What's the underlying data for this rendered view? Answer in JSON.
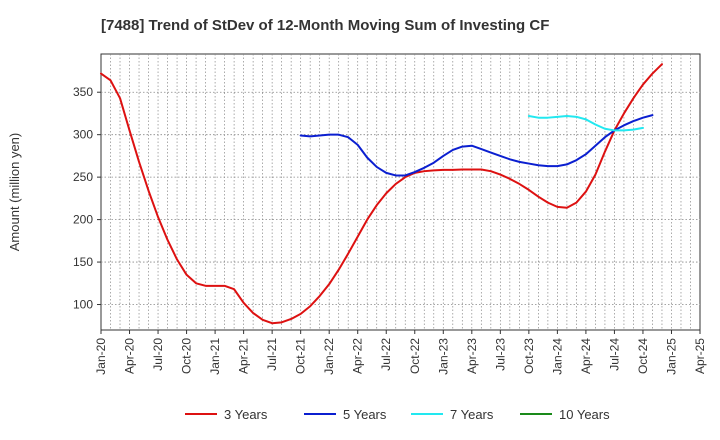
{
  "chart_data": {
    "type": "line",
    "title": "[7488]  Trend of StDev of 12-Month Moving Sum of Investing CF",
    "ylabel": "Amount (million yen)",
    "xlabel": "",
    "x_start": "2020-01",
    "x_end": "2025-04",
    "ylim": [
      70,
      395
    ],
    "y_ticks": [
      100,
      150,
      200,
      250,
      300,
      350
    ],
    "x_tick_labels": [
      "Jan-20",
      "Apr-20",
      "Jul-20",
      "Oct-20",
      "Jan-21",
      "Apr-21",
      "Jul-21",
      "Oct-21",
      "Jan-22",
      "Apr-22",
      "Jul-22",
      "Oct-22",
      "Jan-23",
      "Apr-23",
      "Jul-23",
      "Oct-23",
      "Jan-24",
      "Apr-24",
      "Jul-24",
      "Oct-24",
      "Jan-25",
      "Apr-25"
    ],
    "grid": true,
    "legend_position": "bottom",
    "series": [
      {
        "name": "3 Years",
        "color": "#dd1111",
        "start": "2020-01",
        "values": [
          372,
          364,
          343,
          305,
          268,
          234,
          203,
          176,
          153,
          135,
          125,
          122,
          122,
          122,
          118,
          102,
          90,
          82,
          78,
          79,
          83,
          89,
          98,
          110,
          124,
          141,
          160,
          180,
          200,
          217,
          231,
          242,
          250,
          255,
          257,
          258,
          258.5,
          258.5,
          259,
          259,
          259,
          257,
          253,
          248,
          242,
          235,
          227,
          220,
          215,
          214,
          220,
          233,
          253,
          280,
          305,
          325,
          343,
          359,
          372,
          383
        ]
      },
      {
        "name": "5 Years",
        "color": "#0b1fd0",
        "start": "2021-10",
        "values": [
          299,
          298,
          299,
          300,
          300,
          297,
          288,
          273,
          262,
          255,
          252,
          252,
          256,
          261,
          267,
          275,
          282,
          286,
          287,
          283,
          279,
          275,
          271,
          268,
          266,
          264,
          263,
          263,
          265,
          270,
          277,
          287,
          297,
          305,
          311,
          316,
          320,
          323
        ]
      },
      {
        "name": "7 Years",
        "color": "#22e8f0",
        "start": "2023-10",
        "values": [
          322,
          320,
          320,
          321,
          322,
          321,
          318,
          312,
          307,
          305,
          305,
          306,
          308
        ]
      },
      {
        "name": "10 Years",
        "color": "#1a8a1a",
        "start": "2024-10",
        "values": []
      }
    ]
  }
}
